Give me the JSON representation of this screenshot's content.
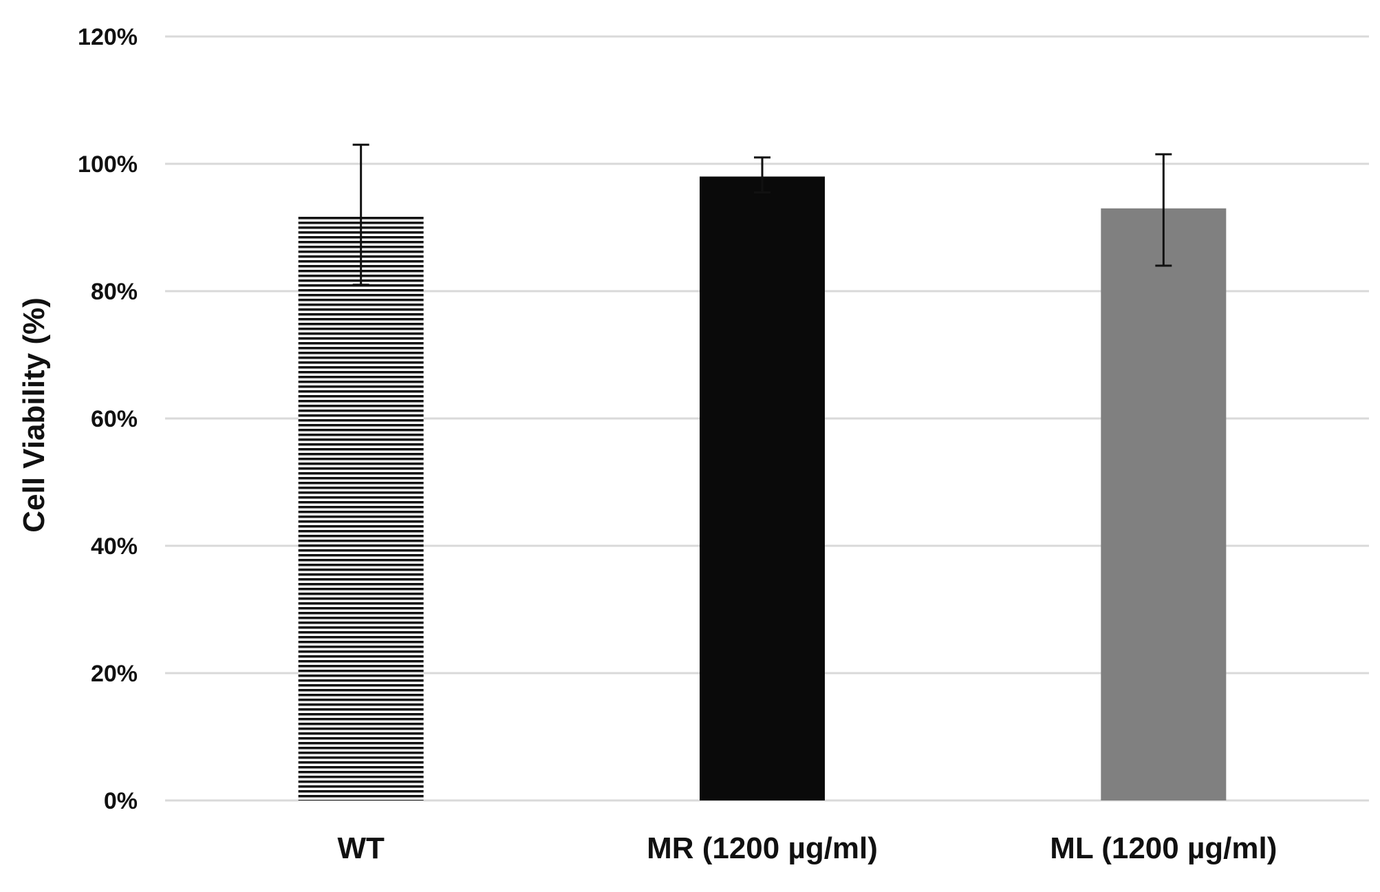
{
  "chart_data": {
    "type": "bar",
    "title": "",
    "xlabel": "",
    "ylabel": "Cell Viability (%)",
    "ylim": [
      0,
      120
    ],
    "yticks": [
      0,
      20,
      40,
      60,
      80,
      100,
      120
    ],
    "ytick_labels": [
      "0%",
      "20%",
      "40%",
      "60%",
      "80%",
      "100%",
      "120%"
    ],
    "grid": true,
    "categories": [
      "WT",
      "MR (1200 µg/ml)",
      "ML (1200 µg/ml)"
    ],
    "values": [
      92,
      98,
      93
    ],
    "error_low": [
      81,
      95.5,
      84
    ],
    "error_high": [
      103,
      101,
      101.5
    ],
    "bar_styles": [
      "horizontal-stripes",
      "solid",
      "solid"
    ],
    "colors": {
      "bar_stripes_dark": "#111111",
      "bar_stripes_light": "#ffffff",
      "bar_solid_black": "#0a0a0a",
      "bar_solid_gray": "#808080",
      "gridline": "#d9d9d9",
      "error_bar": "#111111",
      "text": "#111111"
    }
  }
}
